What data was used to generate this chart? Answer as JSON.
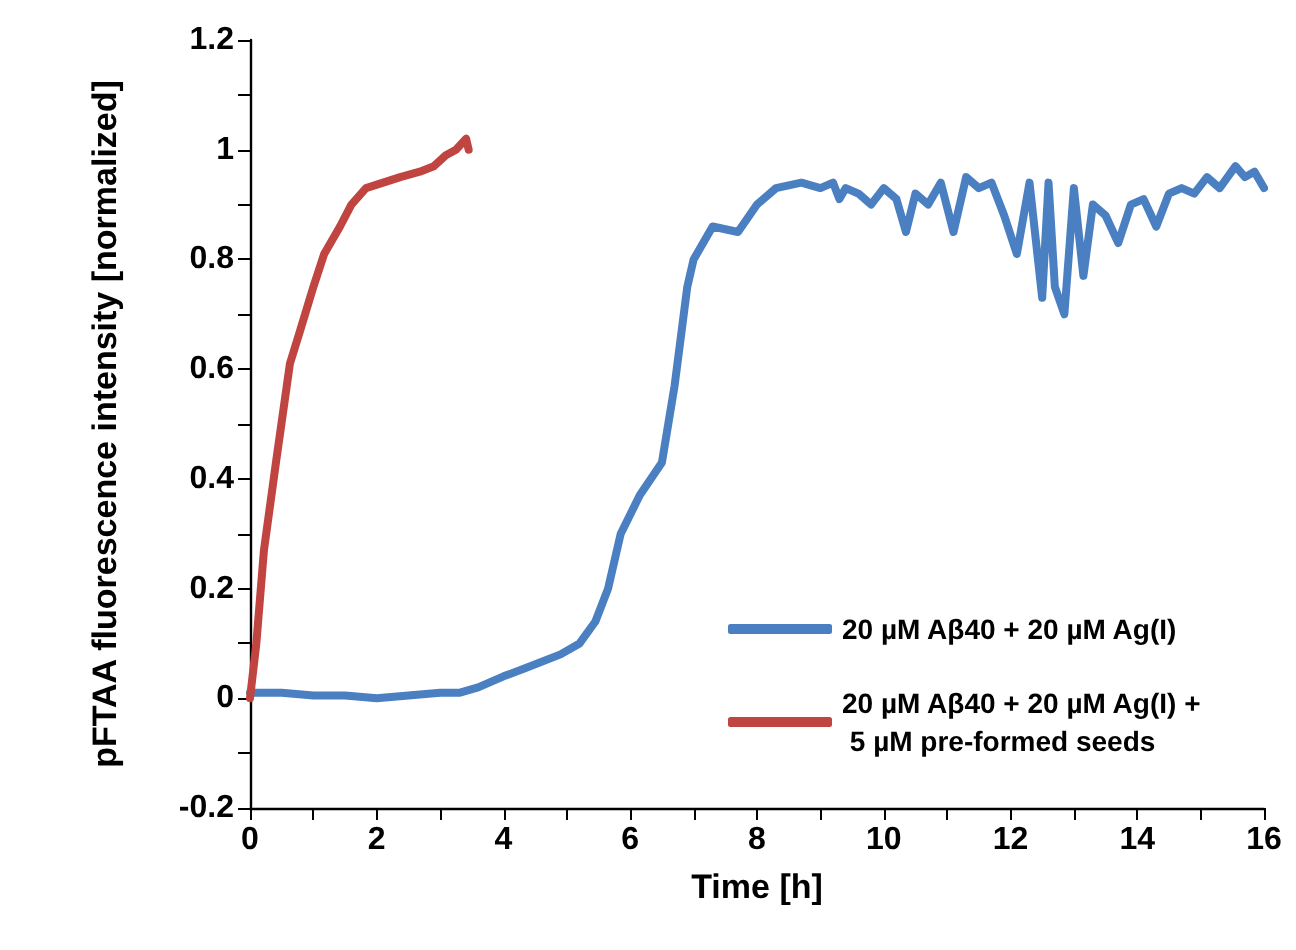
{
  "chart_data": {
    "type": "line",
    "xlabel": "Time [h]",
    "ylabel": "pFTAA fluorescence intensity [normalized]",
    "xlim": [
      0,
      16
    ],
    "ylim": [
      -0.2,
      1.2
    ],
    "xticks": [
      0,
      {
        "value": 1,
        "label": null
      },
      2,
      {
        "value": 3,
        "label": null
      },
      4,
      {
        "value": 5,
        "label": null
      },
      6,
      {
        "value": 7,
        "label": null
      },
      8,
      {
        "value": 9,
        "label": null
      },
      10,
      {
        "value": 11,
        "label": null
      },
      12,
      {
        "value": 13,
        "label": null
      },
      14,
      {
        "value": 15,
        "label": null
      },
      16
    ],
    "yticks": [
      -0.2,
      {
        "value": -0.1,
        "label": null
      },
      0,
      {
        "value": 0.1,
        "label": null
      },
      0.2,
      {
        "value": 0.3,
        "label": null
      },
      0.4,
      {
        "value": 0.5,
        "label": null
      },
      0.6,
      {
        "value": 0.7,
        "label": null
      },
      0.8,
      {
        "value": 0.9,
        "label": null
      },
      1,
      {
        "value": 1.1,
        "label": null
      },
      1.2
    ],
    "grid": false,
    "legend": "bottom right",
    "marker": "none",
    "line_style": "solid",
    "series": [
      {
        "name": "20 µM Aβ40 + 20 µM Ag(I)",
        "color": "#4a7fc1",
        "x": [
          0,
          0.5,
          1,
          1.5,
          2,
          2.5,
          3,
          3.3,
          3.6,
          4,
          4.35,
          4.9,
          5.2,
          5.45,
          5.65,
          5.85,
          6.15,
          6.5,
          6.6,
          6.7,
          6.8,
          6.9,
          7.0,
          7.3,
          7.7,
          8.0,
          8.3,
          8.7,
          9.0,
          9.2,
          9.3,
          9.4,
          9.6,
          9.8,
          10.0,
          10.2,
          10.35,
          10.5,
          10.7,
          10.9,
          11.1,
          11.3,
          11.5,
          11.7,
          11.9,
          12.1,
          12.3,
          12.5,
          12.6,
          12.7,
          12.85,
          13.0,
          13.15,
          13.3,
          13.5,
          13.7,
          13.9,
          14.1,
          14.3,
          14.5,
          14.7,
          14.9,
          15.1,
          15.3,
          15.55,
          15.7,
          15.85,
          16
        ],
        "values": [
          0.01,
          0.01,
          0.005,
          0.005,
          0.0,
          0.005,
          0.01,
          0.01,
          0.02,
          0.04,
          0.055,
          0.08,
          0.1,
          0.14,
          0.2,
          0.3,
          0.37,
          0.43,
          0.5,
          0.57,
          0.66,
          0.75,
          0.8,
          0.86,
          0.85,
          0.9,
          0.93,
          0.94,
          0.93,
          0.94,
          0.91,
          0.93,
          0.92,
          0.9,
          0.93,
          0.91,
          0.85,
          0.92,
          0.9,
          0.94,
          0.85,
          0.95,
          0.93,
          0.94,
          0.88,
          0.81,
          0.94,
          0.73,
          0.94,
          0.75,
          0.7,
          0.93,
          0.77,
          0.9,
          0.88,
          0.83,
          0.9,
          0.91,
          0.86,
          0.92,
          0.93,
          0.92,
          0.95,
          0.93,
          0.97,
          0.95,
          0.96,
          0.93
        ]
      },
      {
        "name": "20 µM Aβ40 + 20 µM Ag(I) + 5 µM pre-formed seeds",
        "color": "#c0443f",
        "x": [
          0,
          0.1,
          0.22,
          0.41,
          0.63,
          0.79,
          1.0,
          1.17,
          1.42,
          1.6,
          1.83,
          2.1,
          2.37,
          2.68,
          2.9,
          3.09,
          3.25,
          3.41,
          3.45
        ],
        "values": [
          0,
          0.1,
          0.27,
          0.43,
          0.61,
          0.67,
          0.75,
          0.81,
          0.86,
          0.9,
          0.93,
          0.94,
          0.95,
          0.96,
          0.97,
          0.99,
          1.0,
          1.02,
          1.0
        ]
      }
    ]
  }
}
